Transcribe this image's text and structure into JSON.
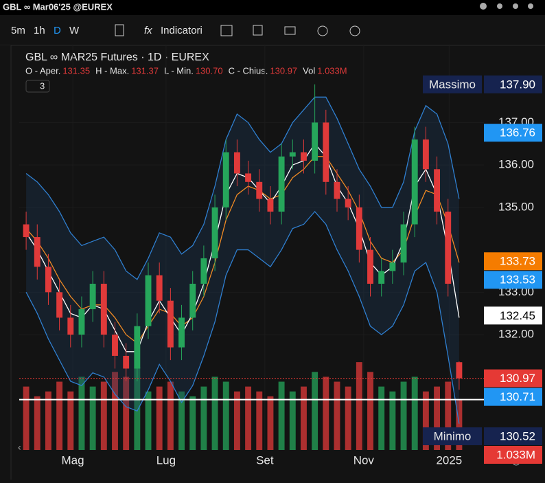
{
  "topbar": {
    "symbol": "GBL ∞ Mar06'25 @EUREX"
  },
  "toolbar": {
    "intervals": [
      "5m",
      "1h",
      "D",
      "W"
    ],
    "indicators": "Indicatori"
  },
  "chart_data": {
    "type": "candlestick",
    "title": "GBL ∞ MAR25 Futures · 1D · EUREX",
    "ohlc_legend": [
      [
        "O - Aper.",
        "131.35"
      ],
      [
        "H - Max.",
        "131.37"
      ],
      [
        "L - Min.",
        "130.70"
      ],
      [
        "C - Chius.",
        "130.97"
      ],
      [
        "Vol",
        "1.033M"
      ]
    ],
    "indicator_count": "3",
    "xlim": [
      0,
      40
    ],
    "xticks": [
      {
        "value": 4.7,
        "label": "Mag"
      },
      {
        "value": 13.1,
        "label": "Lug"
      },
      {
        "value": 22.0,
        "label": "Set"
      },
      {
        "value": 30.9,
        "label": "Nov"
      },
      {
        "value": 38.6,
        "label": "2025"
      }
    ],
    "ylim": [
      129.28,
      138.82
    ],
    "yticks": [
      {
        "value": 132,
        "label": "132.00"
      },
      {
        "value": 133,
        "label": "133.00"
      },
      {
        "value": 135,
        "label": "135.00"
      },
      {
        "value": 136,
        "label": "136.00"
      },
      {
        "value": 137,
        "label": "137.00"
      }
    ],
    "volume_lim": [
      0,
      1.9
    ],
    "open": [
      134.6,
      134.3,
      133.6,
      133.0,
      132.4,
      132.0,
      132.6,
      133.2,
      132.0,
      131.5,
      131.2,
      132.2,
      133.4,
      132.8,
      131.7,
      132.4,
      133.2,
      133.8,
      135.0,
      136.3,
      135.8,
      135.6,
      135.2,
      134.9,
      136.2,
      136.3,
      136.1,
      137.0,
      135.6,
      135.2,
      135.0,
      134.0,
      133.2,
      133.5,
      133.7,
      134.6,
      136.6,
      135.9,
      134.9,
      131.35
    ],
    "high": [
      134.9,
      134.6,
      133.9,
      133.3,
      132.7,
      132.9,
      133.5,
      133.5,
      132.3,
      131.8,
      132.5,
      133.7,
      133.7,
      133.1,
      132.7,
      133.5,
      134.1,
      135.3,
      136.6,
      136.6,
      136.1,
      135.9,
      135.5,
      136.5,
      136.6,
      136.6,
      137.9,
      137.3,
      135.9,
      135.5,
      135.3,
      134.3,
      133.8,
      134.0,
      134.9,
      136.9,
      136.9,
      136.2,
      135.2,
      131.37
    ],
    "low": [
      134.0,
      133.3,
      132.7,
      132.1,
      131.7,
      131.7,
      132.3,
      131.7,
      131.2,
      130.9,
      130.9,
      131.9,
      132.5,
      131.4,
      131.4,
      132.1,
      132.9,
      133.5,
      134.7,
      135.5,
      135.3,
      134.9,
      134.6,
      134.6,
      135.9,
      135.8,
      135.8,
      135.3,
      134.9,
      134.7,
      133.7,
      132.9,
      132.9,
      133.2,
      133.4,
      134.3,
      135.6,
      134.6,
      132.9,
      130.7
    ],
    "close": [
      134.3,
      133.6,
      133.0,
      132.4,
      132.0,
      132.6,
      133.2,
      132.0,
      131.5,
      131.2,
      132.2,
      133.4,
      132.8,
      131.7,
      132.4,
      133.2,
      133.8,
      135.0,
      136.3,
      135.8,
      135.6,
      135.2,
      134.9,
      136.2,
      136.3,
      136.1,
      137.0,
      135.6,
      135.2,
      135.0,
      134.0,
      133.2,
      133.5,
      133.7,
      134.6,
      136.6,
      135.9,
      134.9,
      133.2,
      130.97
    ],
    "volume": [
      1.3,
      1.1,
      1.2,
      1.4,
      1.2,
      1.5,
      1.3,
      1.4,
      1.6,
      1.5,
      1.7,
      1.2,
      1.3,
      1.4,
      1.2,
      1.1,
      1.3,
      1.5,
      1.4,
      1.2,
      1.3,
      1.2,
      1.1,
      1.4,
      1.2,
      1.3,
      1.6,
      1.5,
      1.4,
      1.3,
      1.8,
      1.6,
      1.3,
      1.2,
      1.4,
      1.5,
      1.2,
      1.3,
      1.4,
      1.033
    ],
    "up_color": "#26a65b",
    "down_color": "#e03a3a",
    "lines": [
      {
        "color": "#2f7fd0",
        "values": [
          135.8,
          135.6,
          135.3,
          134.9,
          134.4,
          134.1,
          134.2,
          134.3,
          134.0,
          133.5,
          133.3,
          133.8,
          134.4,
          134.3,
          133.9,
          134.1,
          134.6,
          135.5,
          136.6,
          137.2,
          137.0,
          136.6,
          136.3,
          136.5,
          137.0,
          137.3,
          137.6,
          137.6,
          137.1,
          136.5,
          135.9,
          135.5,
          135.0,
          135.0,
          135.6,
          136.8,
          137.4,
          137.2,
          136.5,
          135.2
        ]
      },
      {
        "color": "#2f7fd0",
        "values": [
          133.0,
          132.5,
          131.9,
          131.4,
          130.9,
          130.8,
          131.1,
          131.0,
          130.6,
          130.3,
          130.2,
          130.7,
          131.3,
          130.9,
          130.4,
          130.8,
          131.5,
          132.3,
          133.4,
          134.0,
          134.0,
          133.8,
          133.6,
          134.0,
          134.5,
          134.6,
          134.9,
          134.6,
          134.0,
          133.5,
          132.9,
          132.2,
          132.0,
          132.2,
          132.7,
          133.5,
          133.7,
          133.0,
          131.5,
          129.9
        ]
      },
      {
        "color": "#f08a24",
        "values": [
          134.5,
          134.2,
          133.8,
          133.3,
          132.9,
          132.6,
          132.7,
          132.7,
          132.4,
          132.0,
          131.8,
          132.2,
          132.6,
          132.5,
          132.2,
          132.4,
          132.9,
          133.7,
          134.7,
          135.3,
          135.5,
          135.4,
          135.2,
          135.3,
          135.7,
          135.9,
          136.2,
          136.2,
          135.8,
          135.4,
          134.9,
          134.2,
          133.8,
          133.7,
          134.0,
          134.8,
          135.4,
          135.3,
          134.6,
          133.7
        ]
      },
      {
        "color": "#ffffff",
        "values": [
          134.4,
          134.0,
          133.5,
          133.0,
          132.5,
          132.4,
          132.7,
          132.6,
          132.1,
          131.6,
          131.6,
          132.3,
          132.8,
          132.4,
          132.0,
          132.5,
          133.2,
          134.2,
          135.3,
          135.8,
          135.7,
          135.4,
          135.1,
          135.5,
          136.0,
          136.1,
          136.5,
          136.2,
          135.5,
          135.1,
          134.5,
          133.7,
          133.4,
          133.6,
          134.2,
          135.5,
          135.9,
          135.3,
          134.0,
          132.4
        ]
      }
    ],
    "price_tags": [
      {
        "name": "Massimo",
        "value": 137.9,
        "label": "137.90",
        "bg": "#16234f",
        "fg": "#ffffff"
      },
      {
        "value": 136.76,
        "label": "136.76",
        "bg": "#2196f3",
        "fg": "#ffffff"
      },
      {
        "value": 133.73,
        "label": "133.73",
        "bg": "#f57c00",
        "fg": "#ffffff"
      },
      {
        "value": 133.53,
        "label": "133.53",
        "bg": "#2196f3",
        "fg": "#ffffff"
      },
      {
        "value": 132.45,
        "label": "132.45",
        "bg": "#ffffff",
        "fg": "#000000"
      },
      {
        "value": 130.97,
        "label": "130.97",
        "bg": "#e53935",
        "fg": "#ffffff"
      },
      {
        "value": 130.71,
        "label": "130.71",
        "bg": "#2196f3",
        "fg": "#ffffff"
      },
      {
        "name": "Minimo",
        "value": 130.52,
        "label": "130.52",
        "bg": "#16234f",
        "fg": "#ffffff"
      }
    ],
    "volume_tag": {
      "value": 1.033,
      "label": "1.033M",
      "bg": "#e53935",
      "fg": "#ffffff"
    }
  }
}
